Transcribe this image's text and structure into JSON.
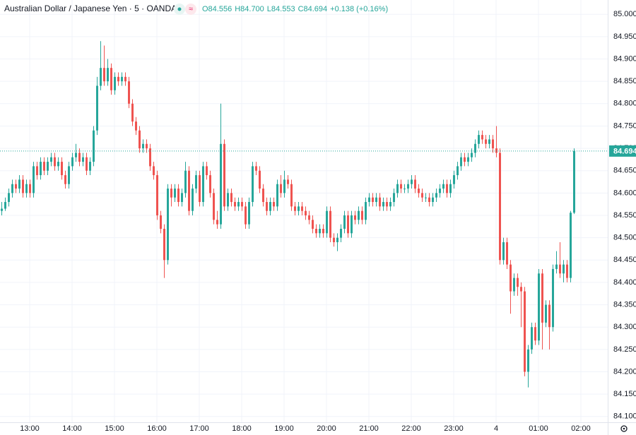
{
  "chart_data": {
    "type": "candlestick",
    "title": "Australian Dollar / Japanese Yen · 5 · OANDA",
    "ohlc_legend": [
      "O84.556",
      "H84.700",
      "L84.553",
      "C84.694",
      "+0.138 (+0.16%)"
    ],
    "up_color": "#26a69a",
    "down_color": "#ef5350",
    "last_price": 84.694,
    "ylim": [
      84.087,
      85.032
    ],
    "yticks": [
      {
        "value": 84.1,
        "label": "84.100"
      },
      {
        "value": 84.15,
        "label": "84.150"
      },
      {
        "value": 84.2,
        "label": "84.200"
      },
      {
        "value": 84.25,
        "label": "84.250"
      },
      {
        "value": 84.3,
        "label": "84.300"
      },
      {
        "value": 84.35,
        "label": "84.350"
      },
      {
        "value": 84.4,
        "label": "84.400"
      },
      {
        "value": 84.45,
        "label": "84.450"
      },
      {
        "value": 84.5,
        "label": "84.500"
      },
      {
        "value": 84.55,
        "label": "84.550"
      },
      {
        "value": 84.6,
        "label": "84.600"
      },
      {
        "value": 84.65,
        "label": "84.650"
      },
      {
        "value": 84.7,
        "label": "84.700"
      },
      {
        "value": 84.75,
        "label": "84.750"
      },
      {
        "value": 84.8,
        "label": "84.800"
      },
      {
        "value": 84.85,
        "label": "84.850"
      },
      {
        "value": 84.9,
        "label": "84.900"
      },
      {
        "value": 84.95,
        "label": "84.950"
      },
      {
        "value": 85.0,
        "label": "85.000"
      }
    ],
    "xlim": [
      -0.4,
      171.6
    ],
    "xticks": [
      {
        "value": 8,
        "label": "13:00"
      },
      {
        "value": 20,
        "label": "14:00"
      },
      {
        "value": 32,
        "label": "15:00"
      },
      {
        "value": 44,
        "label": "16:00"
      },
      {
        "value": 56,
        "label": "17:00"
      },
      {
        "value": 68,
        "label": "18:00"
      },
      {
        "value": 80,
        "label": "19:00"
      },
      {
        "value": 92,
        "label": "20:00"
      },
      {
        "value": 104,
        "label": "21:00"
      },
      {
        "value": 116,
        "label": "22:00"
      },
      {
        "value": 128,
        "label": "23:00"
      },
      {
        "value": 140,
        "label": "4"
      },
      {
        "value": 152,
        "label": "01:00"
      },
      {
        "value": 164,
        "label": "02:00"
      }
    ],
    "grid": true,
    "ohlc": [
      [
        84.56,
        84.58,
        84.55,
        84.565
      ],
      [
        84.565,
        84.59,
        84.56,
        84.58
      ],
      [
        84.58,
        84.61,
        84.57,
        84.6
      ],
      [
        84.6,
        84.63,
        84.59,
        84.62
      ],
      [
        84.62,
        84.63,
        84.6,
        84.61
      ],
      [
        84.61,
        84.64,
        84.6,
        84.63
      ],
      [
        84.63,
        84.64,
        84.59,
        84.6
      ],
      [
        84.6,
        84.63,
        84.59,
        84.62
      ],
      [
        84.62,
        84.63,
        84.59,
        84.6
      ],
      [
        84.6,
        84.67,
        84.59,
        84.66
      ],
      [
        84.66,
        84.67,
        84.63,
        84.64
      ],
      [
        84.64,
        84.68,
        84.63,
        84.67
      ],
      [
        84.67,
        84.68,
        84.64,
        84.65
      ],
      [
        84.65,
        84.68,
        84.64,
        84.67
      ],
      [
        84.67,
        84.69,
        84.66,
        84.68
      ],
      [
        84.68,
        84.69,
        84.65,
        84.66
      ],
      [
        84.66,
        84.68,
        84.65,
        84.67
      ],
      [
        84.67,
        84.68,
        84.63,
        84.64
      ],
      [
        84.64,
        84.65,
        84.61,
        84.62
      ],
      [
        84.62,
        84.67,
        84.61,
        84.66
      ],
      [
        84.66,
        84.69,
        84.65,
        84.68
      ],
      [
        84.68,
        84.71,
        84.67,
        84.69
      ],
      [
        84.69,
        84.7,
        84.66,
        84.67
      ],
      [
        84.67,
        84.69,
        84.66,
        84.68
      ],
      [
        84.68,
        84.69,
        84.64,
        84.65
      ],
      [
        84.65,
        84.68,
        84.64,
        84.67
      ],
      [
        84.67,
        84.75,
        84.66,
        84.74
      ],
      [
        84.74,
        84.86,
        84.73,
        84.84
      ],
      [
        84.84,
        84.94,
        84.83,
        84.88
      ],
      [
        84.88,
        84.93,
        84.84,
        84.85
      ],
      [
        84.85,
        84.9,
        84.84,
        84.88
      ],
      [
        84.88,
        84.89,
        84.82,
        84.83
      ],
      [
        84.83,
        84.87,
        84.82,
        84.86
      ],
      [
        84.86,
        84.87,
        84.84,
        84.85
      ],
      [
        84.85,
        84.87,
        84.84,
        84.86
      ],
      [
        84.86,
        84.87,
        84.84,
        84.85
      ],
      [
        84.85,
        84.86,
        84.79,
        84.8
      ],
      [
        84.8,
        84.81,
        84.75,
        84.76
      ],
      [
        84.76,
        84.77,
        84.73,
        84.74
      ],
      [
        84.74,
        84.75,
        84.69,
        84.7
      ],
      [
        84.7,
        84.72,
        84.69,
        84.71
      ],
      [
        84.71,
        84.72,
        84.69,
        84.7
      ],
      [
        84.7,
        84.71,
        84.65,
        84.66
      ],
      [
        84.66,
        84.67,
        84.63,
        84.64
      ],
      [
        84.64,
        84.65,
        84.54,
        84.55
      ],
      [
        84.55,
        84.56,
        84.51,
        84.52
      ],
      [
        84.52,
        84.53,
        84.41,
        84.45
      ],
      [
        84.45,
        84.62,
        84.44,
        84.61
      ],
      [
        84.61,
        84.62,
        84.57,
        84.59
      ],
      [
        84.59,
        84.62,
        84.58,
        84.61
      ],
      [
        84.61,
        84.62,
        84.57,
        84.58
      ],
      [
        84.58,
        84.61,
        84.57,
        84.6
      ],
      [
        84.6,
        84.67,
        84.59,
        84.65
      ],
      [
        84.65,
        84.66,
        84.55,
        84.56
      ],
      [
        84.56,
        84.62,
        84.55,
        84.61
      ],
      [
        84.61,
        84.65,
        84.6,
        84.64
      ],
      [
        84.64,
        84.65,
        84.57,
        84.58
      ],
      [
        84.58,
        84.67,
        84.57,
        84.66
      ],
      [
        84.66,
        84.67,
        84.63,
        84.64
      ],
      [
        84.64,
        84.65,
        84.59,
        84.6
      ],
      [
        84.6,
        84.61,
        84.53,
        84.54
      ],
      [
        84.54,
        84.56,
        84.52,
        84.53
      ],
      [
        84.53,
        84.8,
        84.52,
        84.71
      ],
      [
        84.71,
        84.72,
        84.56,
        84.57
      ],
      [
        84.57,
        84.61,
        84.56,
        84.6
      ],
      [
        84.6,
        84.61,
        84.57,
        84.58
      ],
      [
        84.58,
        84.59,
        84.56,
        84.57
      ],
      [
        84.57,
        84.59,
        84.56,
        84.58
      ],
      [
        84.58,
        84.59,
        84.56,
        84.57
      ],
      [
        84.57,
        84.58,
        84.52,
        84.53
      ],
      [
        84.53,
        84.59,
        84.52,
        84.58
      ],
      [
        84.58,
        84.67,
        84.57,
        84.66
      ],
      [
        84.66,
        84.67,
        84.64,
        84.65
      ],
      [
        84.65,
        84.66,
        84.6,
        84.61
      ],
      [
        84.61,
        84.62,
        84.57,
        84.58
      ],
      [
        84.58,
        84.59,
        84.55,
        84.56
      ],
      [
        84.56,
        84.59,
        84.55,
        84.58
      ],
      [
        84.58,
        84.59,
        84.56,
        84.57
      ],
      [
        84.57,
        84.63,
        84.56,
        84.62
      ],
      [
        84.62,
        84.64,
        84.59,
        84.6
      ],
      [
        84.6,
        84.65,
        84.59,
        84.63
      ],
      [
        84.63,
        84.64,
        84.61,
        84.62
      ],
      [
        84.62,
        84.63,
        84.56,
        84.57
      ],
      [
        84.57,
        84.58,
        84.55,
        84.56
      ],
      [
        84.56,
        84.58,
        84.55,
        84.57
      ],
      [
        84.57,
        84.58,
        84.55,
        84.56
      ],
      [
        84.56,
        84.57,
        84.54,
        84.55
      ],
      [
        84.55,
        84.56,
        84.53,
        84.54
      ],
      [
        84.54,
        84.55,
        84.51,
        84.52
      ],
      [
        84.52,
        84.53,
        84.5,
        84.51
      ],
      [
        84.51,
        84.53,
        84.5,
        84.52
      ],
      [
        84.52,
        84.53,
        84.5,
        84.51
      ],
      [
        84.51,
        84.57,
        84.5,
        84.56
      ],
      [
        84.56,
        84.57,
        84.49,
        84.5
      ],
      [
        84.5,
        84.51,
        84.48,
        84.49
      ],
      [
        84.49,
        84.51,
        84.47,
        84.5
      ],
      [
        84.5,
        84.53,
        84.49,
        84.52
      ],
      [
        84.52,
        84.56,
        84.51,
        84.55
      ],
      [
        84.55,
        84.56,
        84.5,
        84.51
      ],
      [
        84.51,
        84.56,
        84.5,
        84.55
      ],
      [
        84.55,
        84.56,
        84.53,
        84.54
      ],
      [
        84.54,
        84.57,
        84.53,
        84.56
      ],
      [
        84.56,
        84.57,
        84.53,
        84.54
      ],
      [
        84.54,
        84.59,
        84.53,
        84.58
      ],
      [
        84.58,
        84.6,
        84.57,
        84.59
      ],
      [
        84.59,
        84.6,
        84.57,
        84.58
      ],
      [
        84.58,
        84.6,
        84.57,
        84.59
      ],
      [
        84.59,
        84.6,
        84.56,
        84.57
      ],
      [
        84.57,
        84.59,
        84.56,
        84.58
      ],
      [
        84.58,
        84.59,
        84.56,
        84.57
      ],
      [
        84.57,
        84.59,
        84.56,
        84.58
      ],
      [
        84.58,
        84.61,
        84.57,
        84.6
      ],
      [
        84.6,
        84.63,
        84.59,
        84.62
      ],
      [
        84.62,
        84.63,
        84.6,
        84.61
      ],
      [
        84.61,
        84.62,
        84.6,
        84.61
      ],
      [
        84.61,
        84.63,
        84.6,
        84.62
      ],
      [
        84.62,
        84.64,
        84.61,
        84.63
      ],
      [
        84.63,
        84.64,
        84.6,
        84.61
      ],
      [
        84.61,
        84.62,
        84.59,
        84.6
      ],
      [
        84.6,
        84.61,
        84.58,
        84.59
      ],
      [
        84.59,
        84.6,
        84.58,
        84.59
      ],
      [
        84.59,
        84.6,
        84.57,
        84.58
      ],
      [
        84.58,
        84.6,
        84.57,
        84.59
      ],
      [
        84.59,
        84.61,
        84.58,
        84.6
      ],
      [
        84.6,
        84.62,
        84.59,
        84.61
      ],
      [
        84.61,
        84.63,
        84.6,
        84.62
      ],
      [
        84.62,
        84.63,
        84.59,
        84.6
      ],
      [
        84.6,
        84.63,
        84.59,
        84.62
      ],
      [
        84.62,
        84.65,
        84.61,
        84.64
      ],
      [
        84.64,
        84.67,
        84.63,
        84.66
      ],
      [
        84.66,
        84.69,
        84.65,
        84.68
      ],
      [
        84.68,
        84.69,
        84.66,
        84.67
      ],
      [
        84.67,
        84.69,
        84.66,
        84.68
      ],
      [
        84.68,
        84.7,
        84.67,
        84.69
      ],
      [
        84.69,
        84.72,
        84.68,
        84.71
      ],
      [
        84.71,
        84.74,
        84.7,
        84.73
      ],
      [
        84.73,
        84.74,
        84.71,
        84.72
      ],
      [
        84.72,
        84.73,
        84.7,
        84.71
      ],
      [
        84.71,
        84.73,
        84.7,
        84.72
      ],
      [
        84.72,
        84.73,
        84.69,
        84.7
      ],
      [
        84.7,
        84.75,
        84.68,
        84.69
      ],
      [
        84.69,
        84.7,
        84.44,
        84.45
      ],
      [
        84.45,
        84.5,
        84.44,
        84.49
      ],
      [
        84.49,
        84.5,
        84.43,
        84.44
      ],
      [
        84.44,
        84.45,
        84.33,
        84.38
      ],
      [
        84.38,
        84.42,
        84.37,
        84.41
      ],
      [
        84.41,
        84.42,
        84.37,
        84.39
      ],
      [
        84.39,
        84.4,
        84.3,
        84.38
      ],
      [
        84.38,
        84.39,
        84.19,
        84.2
      ],
      [
        84.2,
        84.26,
        84.165,
        84.25
      ],
      [
        84.25,
        84.31,
        84.24,
        84.3
      ],
      [
        84.3,
        84.31,
        84.26,
        84.27
      ],
      [
        84.27,
        84.43,
        84.26,
        84.42
      ],
      [
        84.42,
        84.43,
        84.25,
        84.31
      ],
      [
        84.31,
        84.36,
        84.3,
        84.35
      ],
      [
        84.35,
        84.36,
        84.25,
        84.3
      ],
      [
        84.3,
        84.44,
        84.29,
        84.43
      ],
      [
        84.43,
        84.47,
        84.42,
        84.44
      ],
      [
        84.44,
        84.49,
        84.41,
        84.42
      ],
      [
        84.42,
        84.45,
        84.4,
        84.44
      ],
      [
        84.44,
        84.45,
        84.4,
        84.41
      ],
      [
        84.41,
        84.56,
        84.4,
        84.556
      ],
      [
        84.556,
        84.7,
        84.553,
        84.694
      ]
    ]
  }
}
